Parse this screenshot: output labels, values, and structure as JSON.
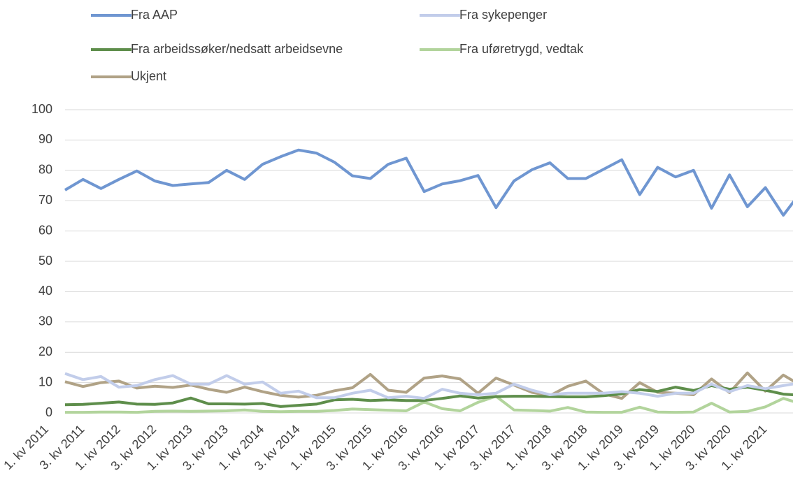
{
  "chart_data": {
    "type": "line",
    "categories": [
      "1. kv 2011",
      null,
      "3. kv 2011",
      null,
      "1. kv 2012",
      null,
      "3. kv 2012",
      null,
      "1. kv 2013",
      null,
      "3. kv 2013",
      null,
      "1. kv 2014",
      null,
      "3. kv 2014",
      null,
      "1. kv 2015",
      null,
      "3. kv 2015",
      null,
      "1. kv 2016",
      null,
      "3. kv 2016",
      null,
      "1. kv 2017",
      null,
      "3. kv 2017",
      null,
      "1. kv 2018",
      null,
      "3. kv 2018",
      null,
      "1. kv 2019",
      null,
      "3. kv 2019",
      null,
      "1. kv 2020",
      null,
      "3. kv 2020",
      null,
      "1. kv 2021",
      null
    ],
    "series": [
      {
        "name": "Fra AAP",
        "color": "#6f96d1",
        "values": [
          73.5,
          77,
          74,
          77,
          79.8,
          76.5,
          75,
          75.5,
          76,
          80,
          77,
          82,
          84.5,
          86.7,
          85.7,
          82.7,
          78.2,
          77.3,
          82,
          84,
          73,
          75.5,
          76.6,
          78.3,
          67.7,
          76.5,
          80.2,
          82.5,
          77.3,
          77.3,
          80.4,
          83.5,
          72,
          81,
          77.8,
          80,
          67.5,
          78.5,
          68,
          74.3,
          65.2,
          73
        ]
      },
      {
        "name": "Fra sykepenger",
        "color": "#c2cdea",
        "values": [
          13,
          11,
          12,
          8.5,
          9,
          11,
          12.3,
          9.5,
          9.5,
          12.3,
          9.5,
          10.2,
          6.5,
          7.2,
          5,
          5,
          6.5,
          7.5,
          5,
          5.5,
          4.8,
          7.8,
          6.5,
          6,
          6.5,
          9.5,
          7.5,
          6,
          6.5,
          6.5,
          6.5,
          7,
          6.5,
          5.5,
          6.5,
          6.5,
          9.5,
          7,
          9,
          8,
          9,
          10
        ]
      },
      {
        "name": "Fra arbeidssøker/nedsatt arbeidsevne",
        "color": "#5e8e4b",
        "values": [
          2.7,
          2.8,
          3.2,
          3.6,
          2.9,
          2.8,
          3.3,
          4.9,
          3,
          3,
          2.9,
          3.1,
          2.1,
          2.5,
          2.9,
          4.3,
          4.5,
          4.1,
          4.3,
          4.1,
          4.1,
          4.8,
          5.6,
          4.9,
          5.4,
          5.5,
          5.5,
          5.4,
          5.3,
          5.3,
          5.7,
          6.3,
          7.7,
          7.1,
          8.5,
          7.4,
          9,
          7.8,
          8.5,
          7.5,
          6.2,
          5.8
        ]
      },
      {
        "name": "Fra uføretrygd, vedtak",
        "color": "#b2d49c",
        "values": [
          0.2,
          0.2,
          0.3,
          0.3,
          0.2,
          0.5,
          0.6,
          0.5,
          0.6,
          0.7,
          1,
          0.5,
          0.4,
          0.5,
          0.5,
          0.8,
          1.3,
          1.1,
          0.9,
          0.7,
          3.6,
          1.4,
          0.7,
          3.5,
          5.5,
          1,
          0.8,
          0.6,
          1.8,
          0.3,
          0.2,
          0.2,
          1.9,
          0.3,
          0.2,
          0.3,
          3.2,
          0.3,
          0.5,
          2,
          4.8,
          3
        ]
      },
      {
        "name": "Ukjent",
        "color": "#b0a286",
        "values": [
          10.3,
          8.7,
          10,
          10.5,
          8.2,
          8.8,
          8.4,
          9.2,
          7.8,
          6.8,
          8.5,
          7,
          5.8,
          5.2,
          5.8,
          7.3,
          8.3,
          12.7,
          7.5,
          6.8,
          11.5,
          12.2,
          11.2,
          6.5,
          11.5,
          9.2,
          6.8,
          5.7,
          8.8,
          10.5,
          6.3,
          4.8,
          10,
          6.8,
          6.5,
          6,
          11.2,
          6.7,
          13.2,
          7.2,
          12.5,
          9
        ]
      }
    ],
    "ylim": [
      0,
      100
    ],
    "yticks": [
      0,
      10,
      20,
      30,
      40,
      50,
      60,
      70,
      80,
      90,
      100
    ],
    "grid": true,
    "legend": "top"
  }
}
